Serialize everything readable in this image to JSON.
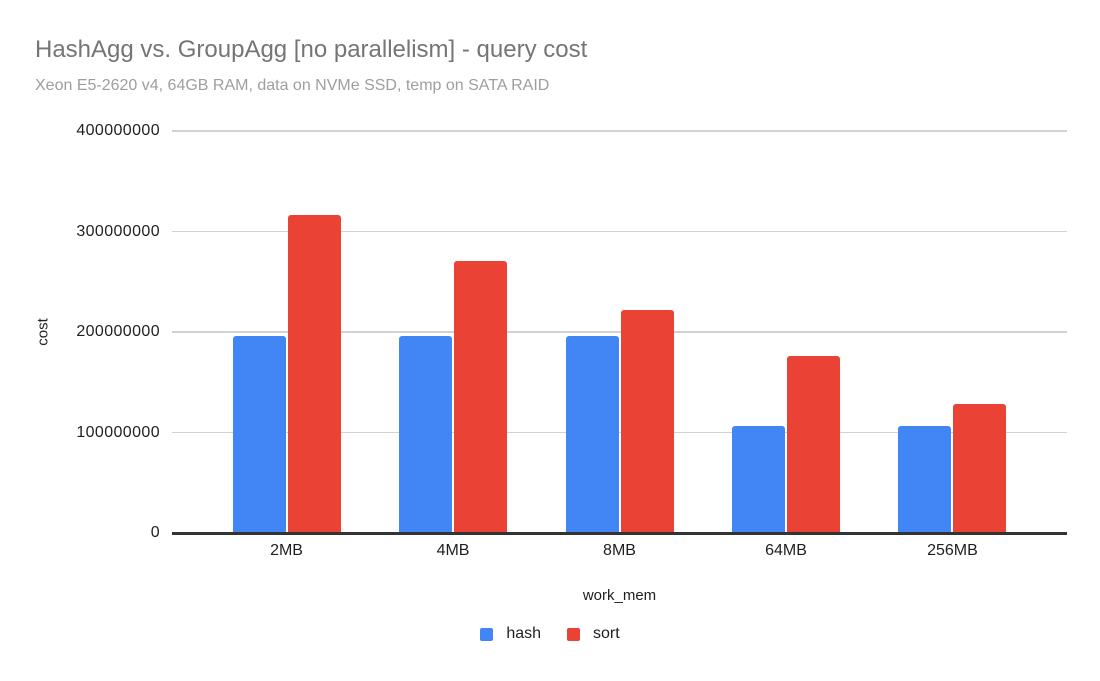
{
  "chart_data": {
    "type": "bar",
    "title": "HashAgg vs. GroupAgg [no parallelism] - query cost",
    "subtitle": "Xeon E5-2620 v4, 64GB RAM, data on NVMe SSD, temp on SATA RAID",
    "categories": [
      "2MB",
      "4MB",
      "8MB",
      "64MB",
      "256MB"
    ],
    "series": [
      {
        "name": "hash",
        "color": "#4285F4",
        "values": [
          196000000,
          196000000,
          196000000,
          106000000,
          106000000
        ]
      },
      {
        "name": "sort",
        "color": "#EA4335",
        "values": [
          316000000,
          271000000,
          222000000,
          176000000,
          128000000
        ]
      }
    ],
    "xlabel": "work_mem",
    "ylabel": "cost",
    "ylim": [
      0,
      400000000
    ],
    "yticks": [
      0,
      100000000,
      200000000,
      300000000,
      400000000
    ],
    "grid": true,
    "legend_position": "bottom",
    "colors": {
      "gridline": "#d2d2d2",
      "axis_line": "#333333",
      "title_text": "#757575",
      "subtitle_text": "#9e9e9e",
      "tick_text": "#1f1f1f"
    }
  }
}
